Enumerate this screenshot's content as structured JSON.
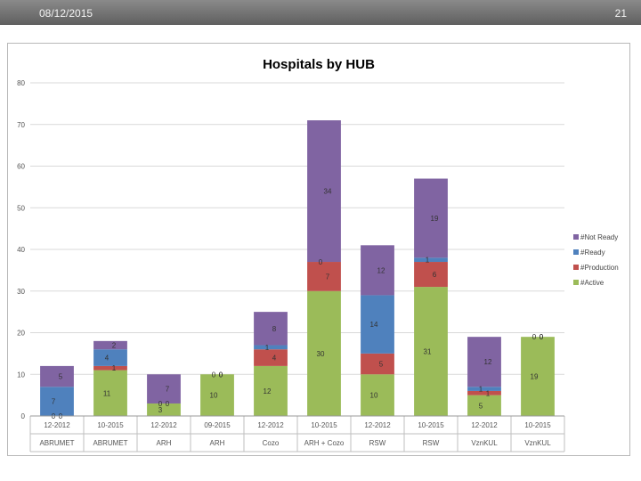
{
  "header": {
    "date": "08/12/2015",
    "page_number": "21"
  },
  "colors": {
    "active": "#9bbb59",
    "production": "#c0504d",
    "ready": "#4f81bd",
    "not_ready": "#8064a2"
  },
  "chart_data": {
    "type": "bar",
    "stacked": true,
    "title": "Hospitals by HUB",
    "ylim": [
      0,
      80
    ],
    "yticks": [
      0,
      10,
      20,
      30,
      40,
      50,
      60,
      70,
      80
    ],
    "grid": true,
    "legend_position": "right",
    "categories": [
      {
        "date": "12-2012",
        "hub": "ABRUMET"
      },
      {
        "date": "10-2015",
        "hub": "ABRUMET"
      },
      {
        "date": "12-2012",
        "hub": "ARH"
      },
      {
        "date": "09-2015",
        "hub": "ARH"
      },
      {
        "date": "12-2012",
        "hub": "Cozo"
      },
      {
        "date": "10-2015",
        "hub": "ARH + Cozo"
      },
      {
        "date": "12-2012",
        "hub": "RSW"
      },
      {
        "date": "10-2015",
        "hub": "RSW"
      },
      {
        "date": "12-2012",
        "hub": "VznKUL"
      },
      {
        "date": "10-2015",
        "hub": "VznKUL"
      }
    ],
    "series": [
      {
        "name": "#Active",
        "color": "#9bbb59",
        "values": [
          0,
          11,
          3,
          10,
          12,
          30,
          10,
          31,
          5,
          19
        ]
      },
      {
        "name": "#Production",
        "color": "#c0504d",
        "values": [
          0,
          1,
          0,
          0,
          4,
          7,
          5,
          6,
          1,
          0
        ]
      },
      {
        "name": "#Ready",
        "color": "#4f81bd",
        "values": [
          7,
          4,
          0,
          0,
          1,
          0,
          14,
          1,
          1,
          0
        ]
      },
      {
        "name": "#Not Ready",
        "color": "#8064a2",
        "values": [
          5,
          2,
          7,
          0,
          8,
          34,
          12,
          19,
          12,
          0
        ]
      }
    ],
    "legend": [
      "#Not Ready",
      "#Ready",
      "#Production",
      "#Active"
    ]
  }
}
